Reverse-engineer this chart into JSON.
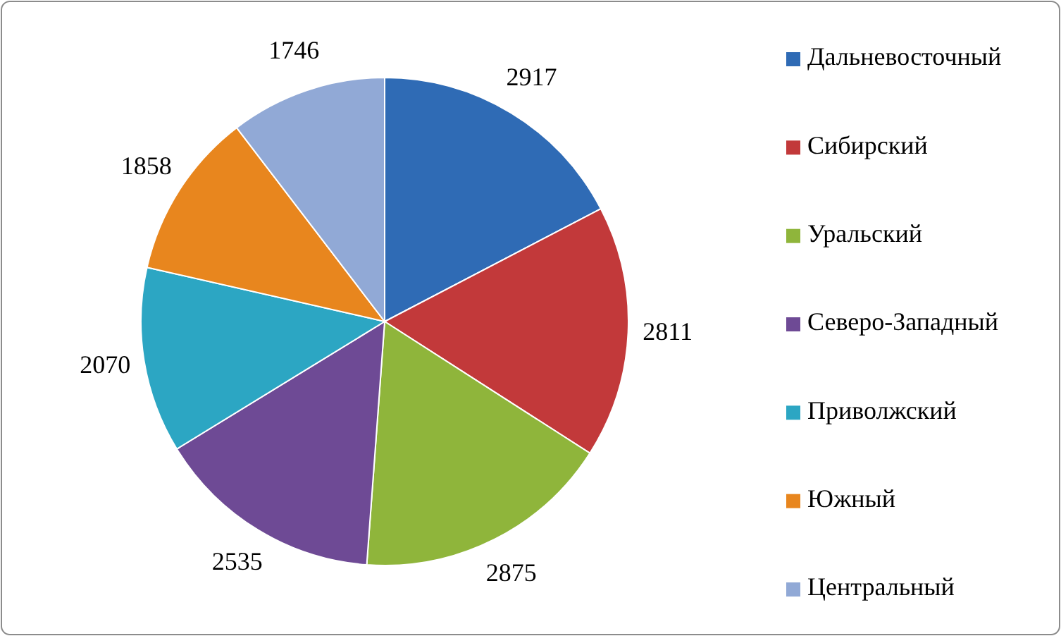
{
  "chart_data": {
    "type": "pie",
    "categories": [
      "Дальневосточный",
      "Сибирский",
      "Уральский",
      "Северо-Западный",
      "Приволжский",
      "Южный",
      "Центральный"
    ],
    "values": [
      2917,
      2811,
      2875,
      2535,
      2070,
      1858,
      1746
    ],
    "colors": [
      "#2f6bb5",
      "#c2393a",
      "#8fb53b",
      "#6e4a95",
      "#2ca6c3",
      "#e8861e",
      "#91a9d6"
    ],
    "data_labels": true,
    "legend": "right"
  }
}
